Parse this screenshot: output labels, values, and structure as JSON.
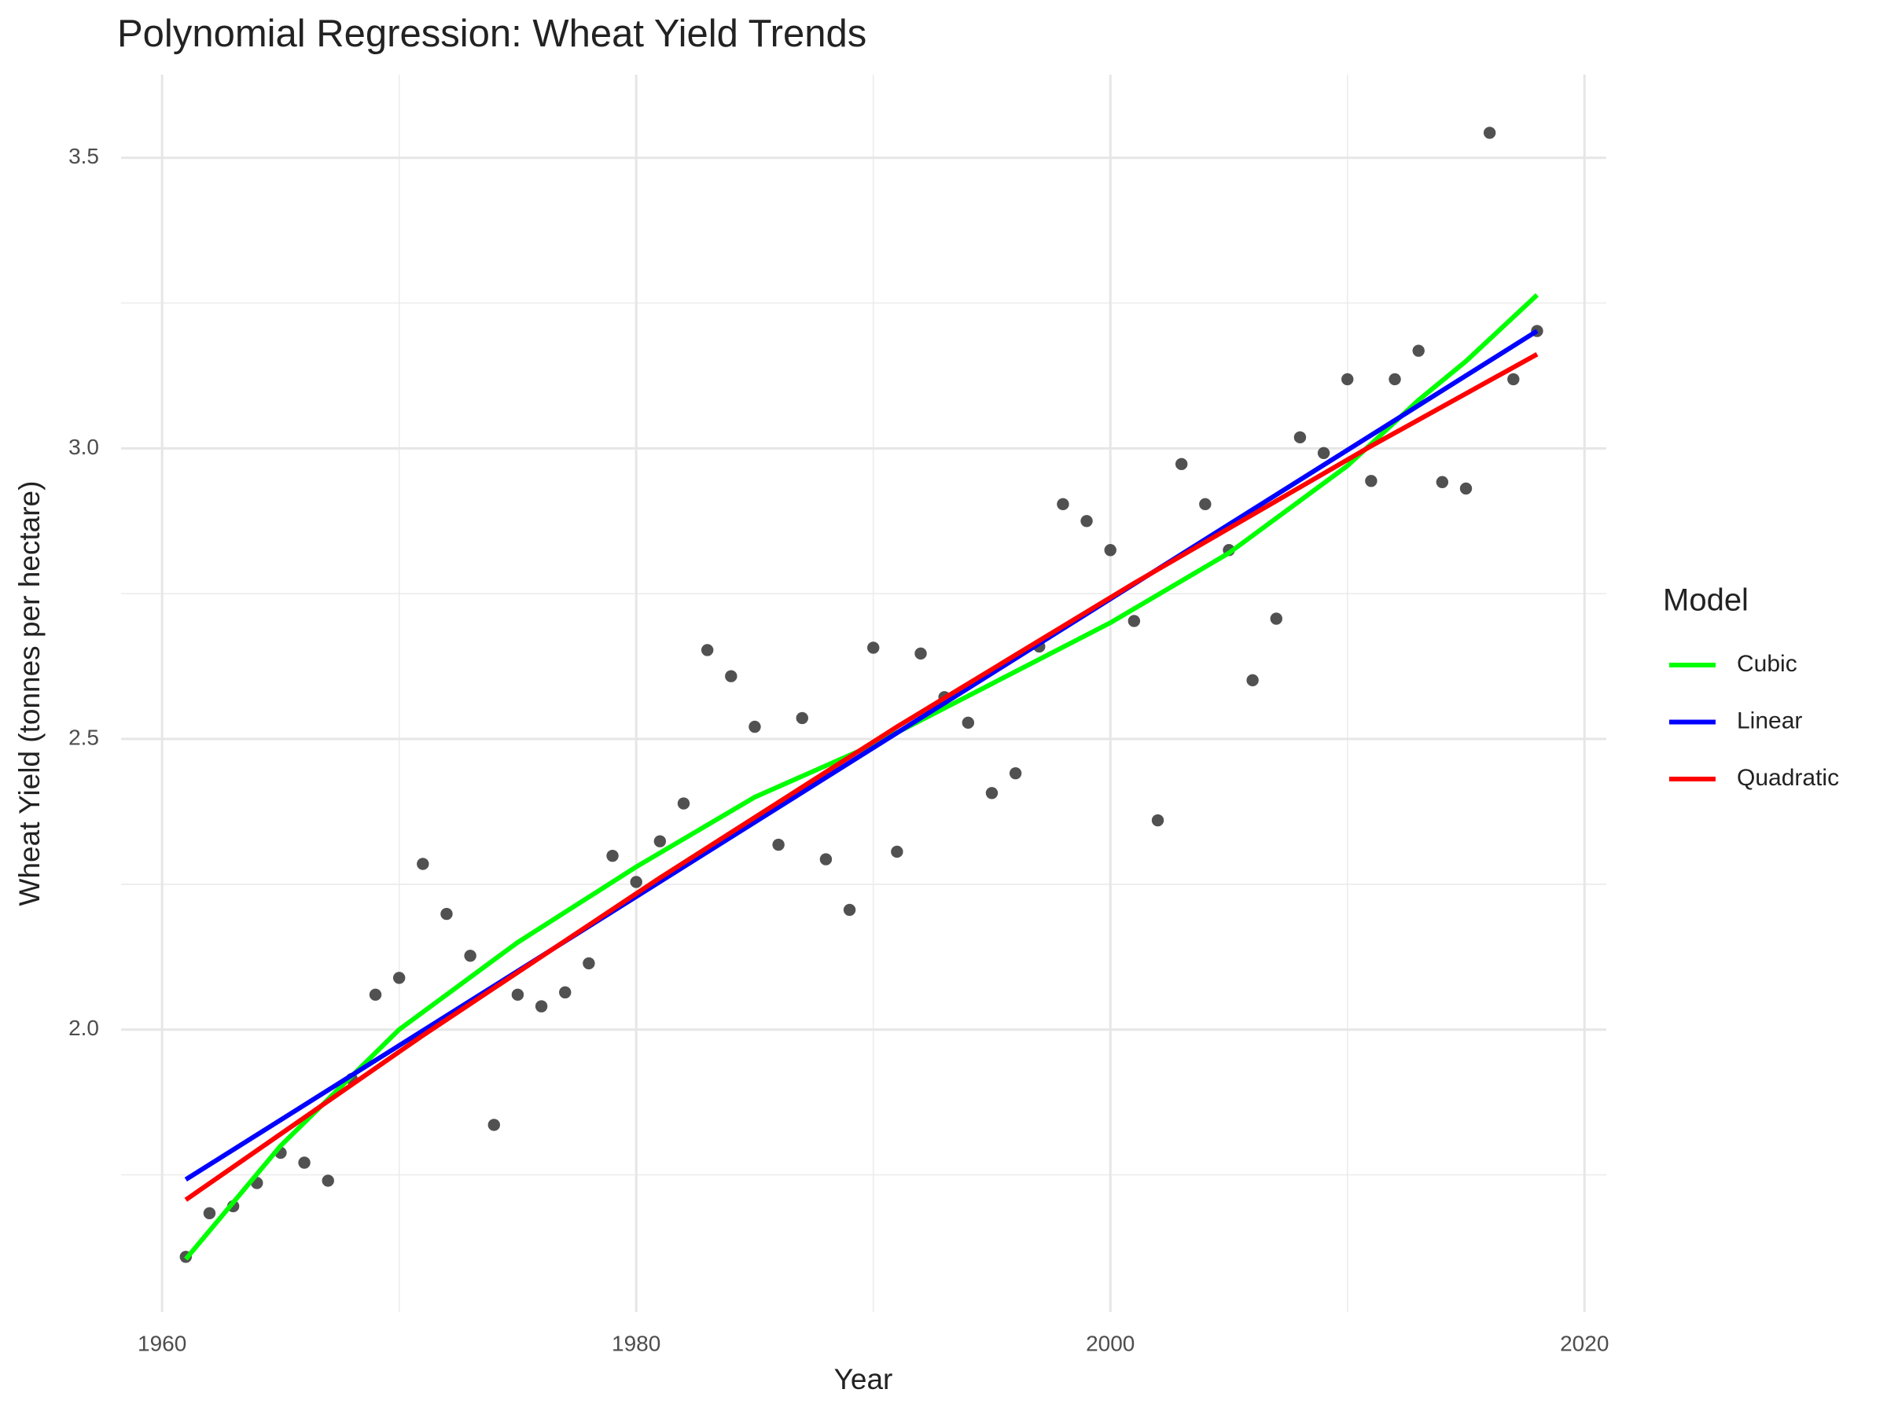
{
  "chart_data": {
    "type": "scatter",
    "title": "Polynomial Regression: Wheat Yield Trends",
    "x_label": "Year",
    "y_label": "Wheat Yield (tonnes per hectare)",
    "legend_title": "Model",
    "legend": "right",
    "grid": true,
    "color": "#333333",
    "x": [
      1961,
      1962,
      1963,
      1964,
      1965,
      1966,
      1967,
      1968,
      1969,
      1970,
      1971,
      1972,
      1973,
      1974,
      1975,
      1976,
      1977,
      1978,
      1979,
      1980,
      1981,
      1982,
      1983,
      1984,
      1985,
      1986,
      1987,
      1988,
      1989,
      1990,
      1991,
      1992,
      1993,
      1994,
      1995,
      1996,
      1997,
      1998,
      1999,
      2000,
      2001,
      2002,
      2003,
      2004,
      2005,
      2006,
      2007,
      2008,
      2009,
      2010,
      2011,
      2012,
      2013,
      2014,
      2015,
      2016,
      2017,
      2018
    ],
    "values": [
      1.609,
      1.684,
      1.696,
      1.736,
      1.788,
      1.771,
      1.74,
      1.915,
      2.06,
      2.089,
      2.285,
      2.199,
      2.127,
      1.836,
      2.06,
      2.04,
      2.064,
      2.114,
      2.299,
      2.254,
      2.324,
      2.389,
      2.653,
      2.608,
      2.521,
      2.318,
      2.536,
      2.293,
      2.206,
      2.657,
      2.306,
      2.647,
      2.572,
      2.528,
      2.407,
      2.441,
      2.659,
      2.904,
      2.875,
      2.825,
      2.703,
      2.36,
      2.973,
      2.904,
      2.825,
      2.601,
      2.707,
      3.019,
      2.992,
      3.119,
      2.944,
      3.119,
      3.168,
      2.942,
      2.931,
      3.543,
      3.119,
      3.202
    ],
    "lines": [
      {
        "name": "Cubic",
        "color": "#00ff00",
        "x": [
          1961,
          1965,
          1970,
          1975,
          1980,
          1985,
          1990,
          1995,
          2000,
          2005,
          2010,
          2013,
          2015,
          2018
        ],
        "values": [
          1.605,
          1.8,
          2.0,
          2.15,
          2.28,
          2.4,
          2.49,
          2.595,
          2.7,
          2.82,
          2.97,
          3.083,
          3.15,
          3.264
        ]
      },
      {
        "name": "Linear",
        "color": "#0000ff",
        "x": [
          1961,
          2018
        ],
        "values": [
          1.742,
          3.202
        ]
      },
      {
        "name": "Quadratic",
        "color": "#ff0000",
        "x": [
          1961,
          1971,
          1981,
          1991,
          2001,
          2011,
          2018
        ],
        "values": [
          1.707,
          1.99,
          2.261,
          2.521,
          2.768,
          3.004,
          3.162
        ]
      }
    ],
    "xlim": [
      1958.27,
      2020.92
    ],
    "ylim": [
      1.514,
      3.643
    ],
    "xticks": [
      1960,
      1980,
      2000,
      2020
    ],
    "yticks": [
      {
        "value": 2,
        "label": "2.0"
      },
      2.5,
      {
        "value": 3,
        "label": "3.0"
      },
      3.5
    ]
  }
}
